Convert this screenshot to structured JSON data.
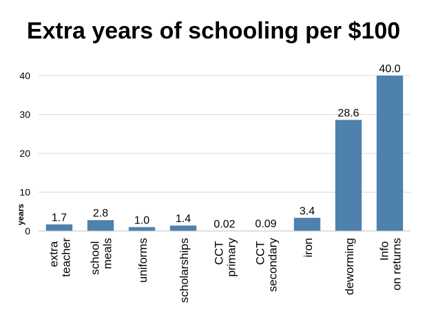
{
  "chart_data": {
    "type": "bar",
    "title": "Extra years of schooling per $100",
    "y_label": "years",
    "categories": [
      "extra teacher",
      "school meals",
      "uniforms",
      "scholarships",
      "CCT primary",
      "CCT secondary",
      "iron",
      "deworming",
      "Info on returns"
    ],
    "values": [
      1.7,
      2.8,
      1.0,
      1.4,
      0.02,
      0.09,
      3.4,
      28.6,
      40.0
    ],
    "value_labels": [
      "1.7",
      "2.8",
      "1.0",
      "1.4",
      "0.02",
      "0.09",
      "3.4",
      "28.6",
      "40.0"
    ],
    "color": "#4f81ad",
    "ylim": [
      0,
      40
    ],
    "yticks": [
      0,
      10,
      20,
      30,
      40
    ],
    "grid": true
  }
}
